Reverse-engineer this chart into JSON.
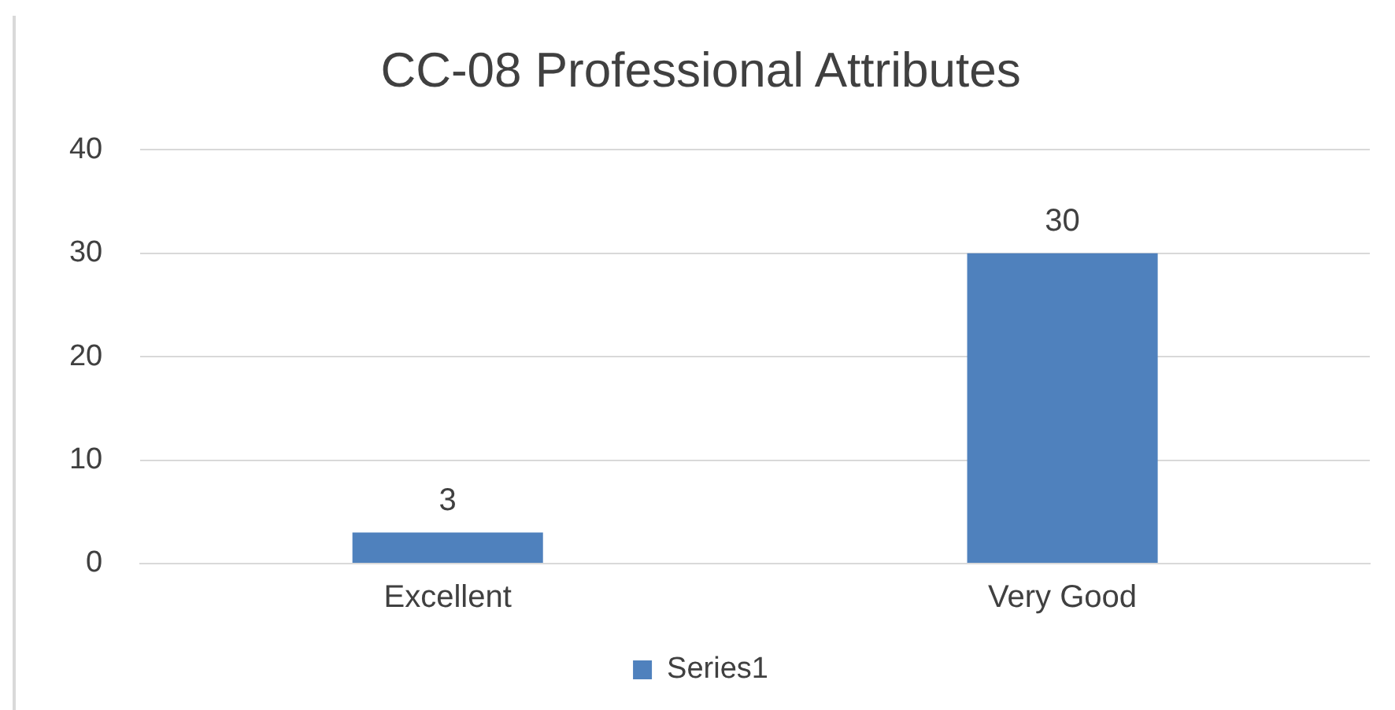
{
  "chart_data": {
    "type": "bar",
    "title": "CC-08 Professional Attributes",
    "categories": [
      "Excellent",
      "Very Good"
    ],
    "series": [
      {
        "name": "Series1",
        "color": "#4f81bd",
        "values": [
          3,
          30
        ]
      }
    ],
    "ylim": [
      0,
      40
    ],
    "yticks": [
      0,
      10,
      20,
      30,
      40
    ],
    "grid": "y",
    "legend": "bottom",
    "data_labels": true
  }
}
